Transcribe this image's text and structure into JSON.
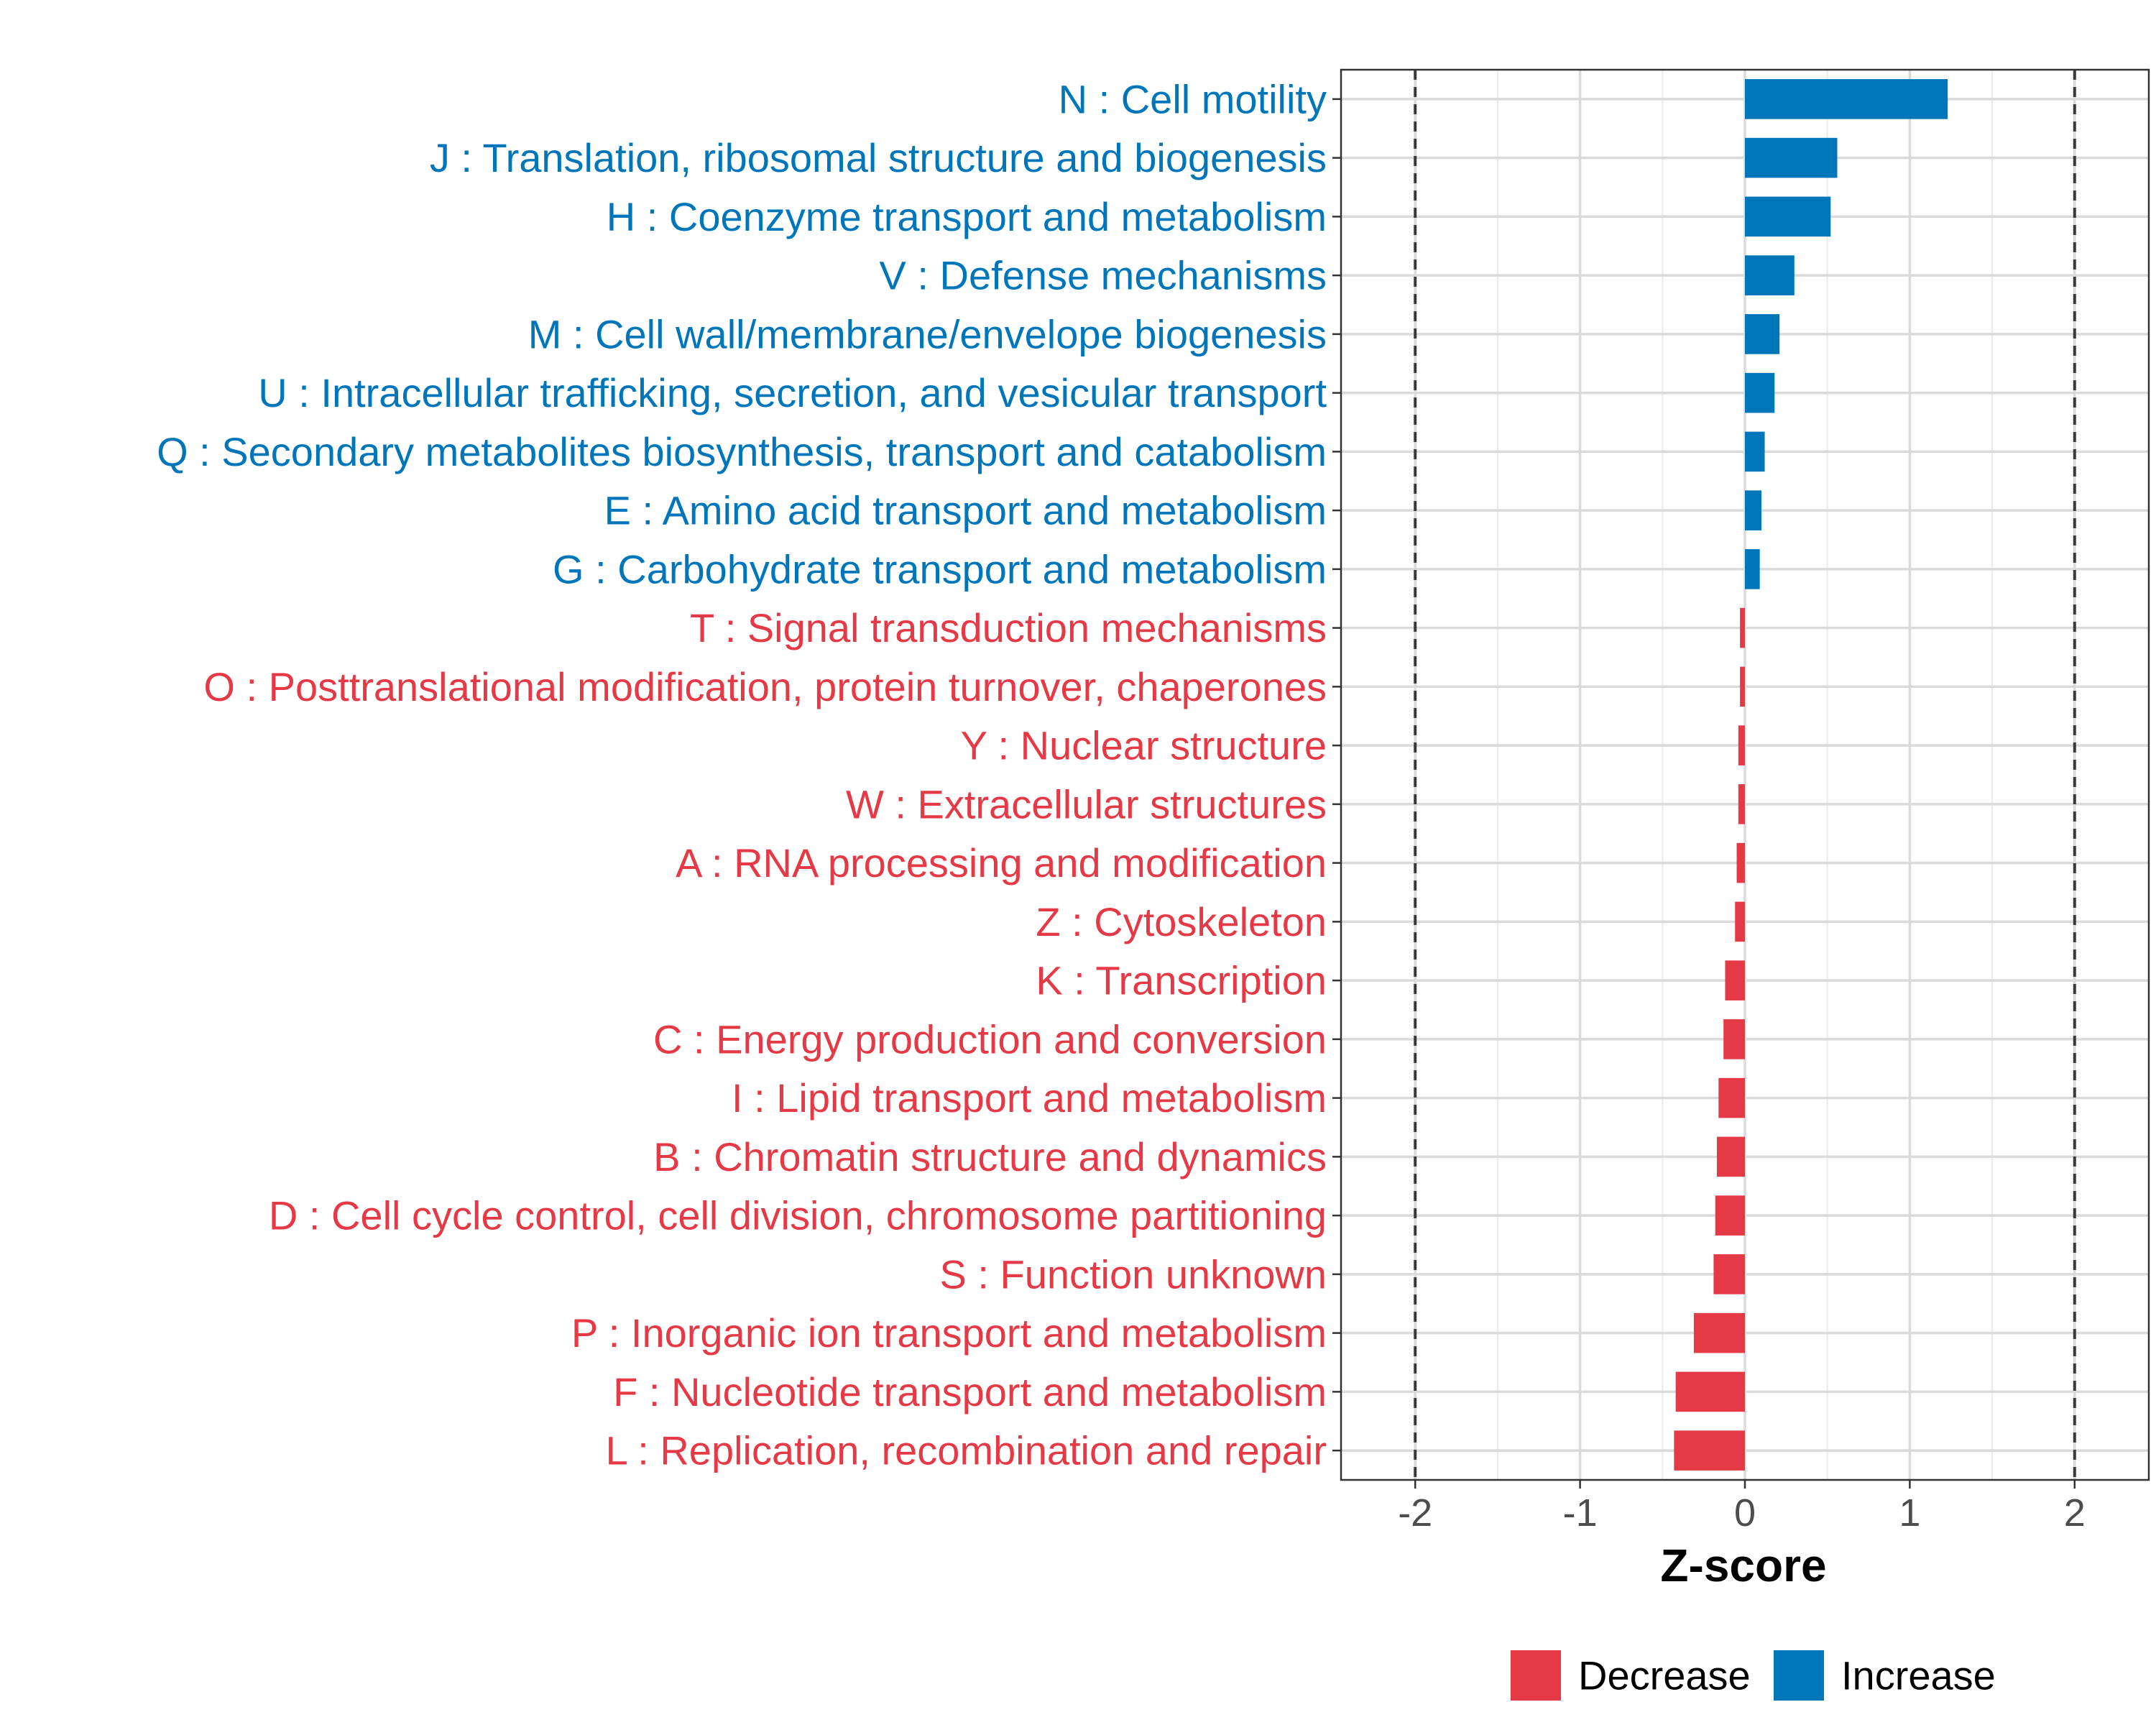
{
  "chart_data": {
    "type": "bar",
    "orientation": "horizontal",
    "title": "",
    "xlabel": "Z-score",
    "ylabel": "",
    "xlim": [
      -2.45,
      2.45
    ],
    "xticks": [
      -2,
      -1,
      0,
      1,
      2
    ],
    "xtick_labels": [
      "-2",
      "-1",
      "0",
      "1",
      "2"
    ],
    "reference_lines": [
      -2,
      2
    ],
    "grid": true,
    "legend_position": "bottom",
    "colors": {
      "Increase": "#0076BA",
      "Decrease": "#E63946"
    },
    "legend": [
      {
        "label": "Decrease",
        "color": "#E63946"
      },
      {
        "label": "Increase",
        "color": "#0076BA"
      }
    ],
    "categories": [
      "N : Cell motility",
      "J : Translation, ribosomal structure and biogenesis",
      "H : Coenzyme transport and metabolism",
      "V : Defense mechanisms",
      "M : Cell wall/membrane/envelope biogenesis",
      "U : Intracellular trafficking, secretion, and vesicular transport",
      "Q : Secondary metabolites biosynthesis, transport and catabolism",
      "E : Amino acid transport and metabolism",
      "G : Carbohydrate transport and metabolism",
      "T : Signal transduction mechanisms",
      "O : Posttranslational modification, protein turnover, chaperones",
      "Y : Nuclear structure",
      "W : Extracellular structures",
      "A : RNA processing and modification",
      "Z : Cytoskeleton",
      "K : Transcription",
      "C : Energy production and conversion",
      "I : Lipid transport and metabolism",
      "B : Chromatin structure and dynamics",
      "D : Cell cycle control, cell division, chromosome partitioning",
      "S : Function unknown",
      "P : Inorganic ion transport and metabolism",
      "F : Nucleotide transport and metabolism",
      "L : Replication, recombination and repair"
    ],
    "values": [
      1.23,
      0.56,
      0.52,
      0.3,
      0.21,
      0.18,
      0.12,
      0.1,
      0.09,
      -0.03,
      -0.03,
      -0.04,
      -0.04,
      -0.05,
      -0.06,
      -0.12,
      -0.13,
      -0.16,
      -0.17,
      -0.18,
      -0.19,
      -0.31,
      -0.42,
      -0.43
    ],
    "groups": [
      "Increase",
      "Increase",
      "Increase",
      "Increase",
      "Increase",
      "Increase",
      "Increase",
      "Increase",
      "Increase",
      "Decrease",
      "Decrease",
      "Decrease",
      "Decrease",
      "Decrease",
      "Decrease",
      "Decrease",
      "Decrease",
      "Decrease",
      "Decrease",
      "Decrease",
      "Decrease",
      "Decrease",
      "Decrease",
      "Decrease"
    ]
  }
}
